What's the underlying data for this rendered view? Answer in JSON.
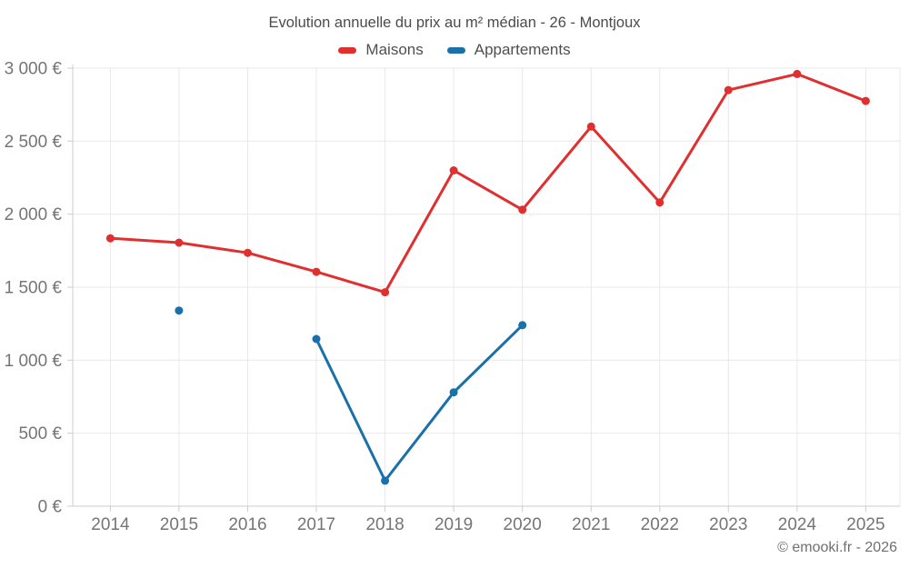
{
  "chart": {
    "title": "Evolution annuelle du prix au m² médian - 26 - Montjoux",
    "footer": "© emooki.fr - 2026"
  },
  "chart_data": {
    "type": "line",
    "title": "Evolution annuelle du prix au m² médian - 26 - Montjoux",
    "categories": [
      "2014",
      "2015",
      "2016",
      "2017",
      "2018",
      "2019",
      "2020",
      "2021",
      "2022",
      "2023",
      "2024",
      "2025"
    ],
    "series": [
      {
        "name": "Maisons",
        "color": "#e12f2f",
        "values": [
          1835,
          1805,
          1735,
          1605,
          1465,
          2300,
          2030,
          2600,
          2080,
          2850,
          2960,
          2775
        ]
      },
      {
        "name": "Appartements",
        "color": "#1a70a8",
        "values": [
          null,
          1340,
          null,
          1145,
          175,
          780,
          1240,
          null,
          null,
          null,
          null,
          null
        ]
      }
    ],
    "xlabel": "",
    "ylabel": "",
    "ylim": [
      0,
      3000
    ],
    "y_tick_step": 500,
    "y_tick_labels": [
      "0 €",
      "500 €",
      "1 000 €",
      "1 500 €",
      "2 000 €",
      "2 500 €",
      "3 000 €"
    ],
    "grid": true,
    "legend_position": "top-center",
    "colors": {
      "gridline": "#e8e8e8",
      "axis": "#cccccc",
      "tick_text": "#757575"
    }
  }
}
